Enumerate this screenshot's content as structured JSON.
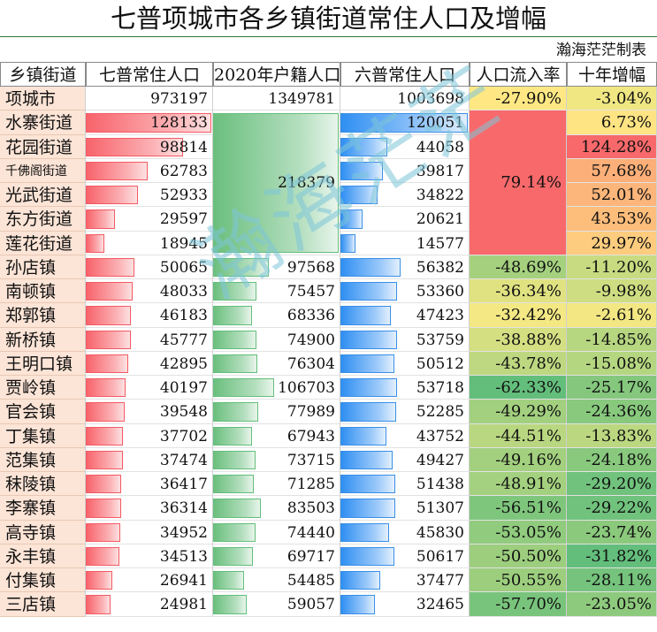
{
  "title": "七普项城市各乡镇街道常住人口及增幅",
  "subtitle": "瀚海茫茫制表",
  "watermark": "瀚海茫茫",
  "colors": {
    "bar_census7": "#f8696b",
    "bar_registered": "#63be7b",
    "bar_census6": "#2e8ff0",
    "scale_low": "#63be7b",
    "scale_mid": "#ffeb84",
    "scale_high": "#f8696b",
    "name_column_bg": "#fce4d6"
  },
  "chart_data": {
    "type": "table",
    "columns": [
      "乡镇街道",
      "七普常住人口",
      "2020年户籍人口",
      "六普常住人口",
      "人口流入率",
      "十年增幅"
    ],
    "merged_note": "城区六街道户籍人口与人口流入率合并为一个值",
    "rows": [
      {
        "name": "项城市",
        "census7": 973197,
        "registered": 1349781,
        "census6": 1003698,
        "inflow": "-27.90%",
        "inflow_value": -27.9,
        "growth": "-3.04%",
        "growth_value": -3.04
      },
      {
        "name": "水寨街道",
        "census7": 128133,
        "registered": "218379",
        "registered_value": 218379,
        "census6": 120051,
        "inflow": "79.14%",
        "inflow_value": 79.14,
        "growth": "6.73%",
        "growth_value": 6.73,
        "merged_start": true
      },
      {
        "name": "花园街道",
        "census7": 98814,
        "census6": 44058,
        "growth": "124.28%",
        "growth_value": 124.28
      },
      {
        "name": "千佛阁街道",
        "census7": 62783,
        "census6": 39817,
        "growth": "57.68%",
        "growth_value": 57.68
      },
      {
        "name": "光武街道",
        "census7": 52933,
        "census6": 34822,
        "growth": "52.01%",
        "growth_value": 52.01
      },
      {
        "name": "东方街道",
        "census7": 29597,
        "census6": 20621,
        "growth": "43.53%",
        "growth_value": 43.53
      },
      {
        "name": "莲花街道",
        "census7": 18945,
        "census6": 14577,
        "growth": "29.97%",
        "growth_value": 29.97
      },
      {
        "name": "孙店镇",
        "census7": 50065,
        "registered": 97568,
        "census6": 56382,
        "inflow": "-48.69%",
        "inflow_value": -48.69,
        "growth": "-11.20%",
        "growth_value": -11.2
      },
      {
        "name": "南顿镇",
        "census7": 48033,
        "registered": 75457,
        "census6": 53360,
        "inflow": "-36.34%",
        "inflow_value": -36.34,
        "growth": "-9.98%",
        "growth_value": -9.98
      },
      {
        "name": "郑郭镇",
        "census7": 46183,
        "registered": 68336,
        "census6": 47423,
        "inflow": "-32.42%",
        "inflow_value": -32.42,
        "growth": "-2.61%",
        "growth_value": -2.61
      },
      {
        "name": "新桥镇",
        "census7": 45777,
        "registered": 74900,
        "census6": 53759,
        "inflow": "-38.88%",
        "inflow_value": -38.88,
        "growth": "-14.85%",
        "growth_value": -14.85
      },
      {
        "name": "王明口镇",
        "census7": 42895,
        "registered": 76304,
        "census6": 50512,
        "inflow": "-43.78%",
        "inflow_value": -43.78,
        "growth": "-15.08%",
        "growth_value": -15.08
      },
      {
        "name": "贾岭镇",
        "census7": 40197,
        "registered": 106703,
        "census6": 53718,
        "inflow": "-62.33%",
        "inflow_value": -62.33,
        "growth": "-25.17%",
        "growth_value": -25.17
      },
      {
        "name": "官会镇",
        "census7": 39548,
        "registered": 77989,
        "census6": 52285,
        "inflow": "-49.29%",
        "inflow_value": -49.29,
        "growth": "-24.36%",
        "growth_value": -24.36
      },
      {
        "name": "丁集镇",
        "census7": 37702,
        "registered": 67943,
        "census6": 43752,
        "inflow": "-44.51%",
        "inflow_value": -44.51,
        "growth": "-13.83%",
        "growth_value": -13.83
      },
      {
        "name": "范集镇",
        "census7": 37474,
        "registered": 73715,
        "census6": 49427,
        "inflow": "-49.16%",
        "inflow_value": -49.16,
        "growth": "-24.18%",
        "growth_value": -24.18
      },
      {
        "name": "秣陵镇",
        "census7": 36417,
        "registered": 71285,
        "census6": 51438,
        "inflow": "-48.91%",
        "inflow_value": -48.91,
        "growth": "-29.20%",
        "growth_value": -29.2
      },
      {
        "name": "李寨镇",
        "census7": 36314,
        "registered": 83503,
        "census6": 51307,
        "inflow": "-56.51%",
        "inflow_value": -56.51,
        "growth": "-29.22%",
        "growth_value": -29.22
      },
      {
        "name": "高寺镇",
        "census7": 34952,
        "registered": 74440,
        "census6": 45830,
        "inflow": "-53.05%",
        "inflow_value": -53.05,
        "growth": "-23.74%",
        "growth_value": -23.74
      },
      {
        "name": "永丰镇",
        "census7": 34513,
        "registered": 69717,
        "census6": 50617,
        "inflow": "-50.50%",
        "inflow_value": -50.5,
        "growth": "-31.82%",
        "growth_value": -31.82
      },
      {
        "name": "付集镇",
        "census7": 26941,
        "registered": 54485,
        "census6": 37477,
        "inflow": "-50.55%",
        "inflow_value": -50.55,
        "growth": "-28.11%",
        "growth_value": -28.11
      },
      {
        "name": "三店镇",
        "census7": 24981,
        "registered": 59057,
        "census6": 32465,
        "inflow": "-57.70%",
        "inflow_value": -57.7,
        "growth": "-23.05%",
        "growth_value": -23.05
      }
    ]
  }
}
